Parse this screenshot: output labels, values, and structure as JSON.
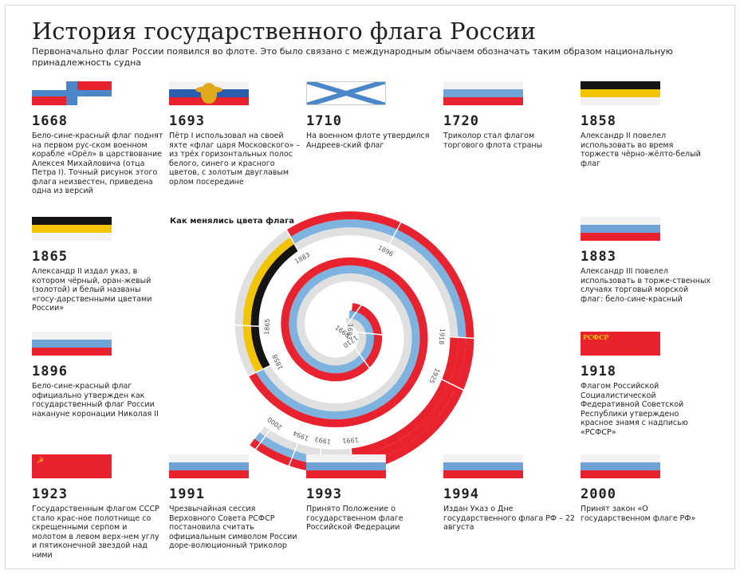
{
  "header": {
    "title": "История государственного флага России",
    "subtitle": "Первоначально флаг России появился во флоте. Это было связано с международным обычаем обозначать таким образом национальную принадлежность судна"
  },
  "chart_title": "Как менялись цвета флага",
  "spiral_labels": [
    "1668",
    "1693",
    "1710",
    "1858",
    "1865",
    "1883",
    "1896",
    "1918",
    "1925",
    "1991",
    "1993",
    "1994",
    "2000"
  ],
  "colors": {
    "white": "#e0e0e0",
    "blue": "#7fb3df",
    "red": "#e8222e",
    "black": "#141414",
    "yellow": "#f3c500",
    "text": "#231f20"
  },
  "items": [
    {
      "year": "1668",
      "flag": "cross-flag-icon",
      "text": "Бело-сине-красный флаг поднят на первом рус-ском военном корабле «Орёл» в царствование Алексея Михайловича (отца Петра I). Точный рисунок этого флага неизвестен, приведена одна из версий"
    },
    {
      "year": "1693",
      "flag": "eagle-tricolor-icon",
      "text": "Пётр I использовал на своей яхте «флаг царя Московского» – из трёх горизонтальных полос белого, синего и красного цветов, с золотым двуглавым орлом посередине"
    },
    {
      "year": "1710",
      "flag": "andreevsky-flag-icon",
      "text": "На военном флоте утвердился Андреев-ский флаг"
    },
    {
      "year": "1720",
      "flag": "tricolor-icon",
      "text": "Триколор стал флагом торгового флота страны"
    },
    {
      "year": "1858",
      "flag": "imperial-flag-icon",
      "text": "Александр II повелел использовать во время торжеств чёрно-жёлто-белый флаг"
    },
    {
      "year": "1865",
      "flag": "imperial-flag-icon",
      "text": "Александр II издал указ, в котором чёрный, оран-жевый (золотой) и белый названы «госу-дарственными цветами России»"
    },
    {
      "year": "1883",
      "flag": "tricolor-icon",
      "text": "Александр III повелел использовать в торже-ственных случаях торговый морской флаг: бело-сине-красный"
    },
    {
      "year": "1896",
      "flag": "tricolor-icon",
      "text": "Бело-сине-красный флаг официально утвержден как государственный флаг России накануне коронации Николая II"
    },
    {
      "year": "1918",
      "flag": "rsfsr-flag-icon",
      "flag_text": "РСФСР",
      "text": "Флагом Российской Социалистической Федеративной Советской Республики утверждено красное знамя с надписью «РСФСР»"
    },
    {
      "year": "1923",
      "flag": "ussr-flag-icon",
      "text": "Государственным флагом СССР стало крас-ное полотнище со скрещенными серпом и молотом в левом верх-нем углу и пятиконечной звездой над ними"
    },
    {
      "year": "1991",
      "flag": "tricolor-icon",
      "text": "Чрезвычайная сессия Верховного Совета РСФСР постановила считать официальным символом России доре-волюционный триколор"
    },
    {
      "year": "1993",
      "flag": "tricolor-icon",
      "text": "Принято Положение о государственном флаге Российской Федерации"
    },
    {
      "year": "1994",
      "flag": "tricolor-icon",
      "text": "Издан Указ о Дне государственного флага РФ – 22 августа"
    },
    {
      "year": "2000",
      "flag": "tricolor-icon",
      "text": "Принят закон «О государственном флаге РФ»"
    }
  ]
}
